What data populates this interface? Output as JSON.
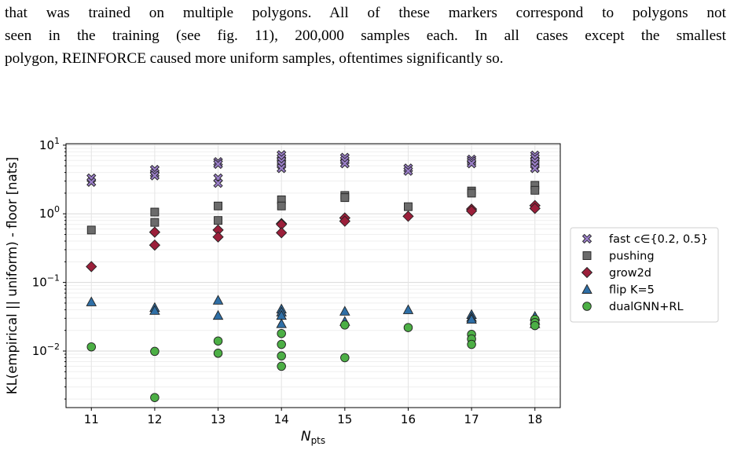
{
  "paragraph": {
    "lines": [
      "that was trained on multiple polygons. All of these markers correspond to polygons not",
      "seen in the training (see fig. 11), 200,000 samples each. In all cases except the smallest",
      "polygon, REINFORCE caused more uniform samples, oftentimes significantly so."
    ]
  },
  "chart_data": {
    "type": "scatter",
    "xlabel": "N",
    "xlabel_subscript": "pts",
    "ylabel": "KL(empirical || uniform) - floor  [nats]",
    "yscale": "log",
    "ylim": [
      0.0015,
      10.5
    ],
    "xlim": [
      10.6,
      18.4
    ],
    "x_ticks": [
      11,
      12,
      13,
      14,
      15,
      16,
      17,
      18
    ],
    "y_ticks": [
      {
        "value": 10,
        "base": "10",
        "exp": "1"
      },
      {
        "value": 1,
        "base": "10",
        "exp": "0"
      },
      {
        "value": 0.1,
        "base": "10",
        "exp": "−1"
      },
      {
        "value": 0.01,
        "base": "10",
        "exp": "−2"
      }
    ],
    "grid": true,
    "legend_position": "right-outside",
    "series": [
      {
        "name": "fast c∈{0.2, 0.5}",
        "marker": "X",
        "color": "#9b7fc9",
        "points": [
          [
            11,
            3.3
          ],
          [
            11,
            2.9
          ],
          [
            12,
            4.4
          ],
          [
            12,
            3.9
          ],
          [
            12,
            3.6
          ],
          [
            13,
            5.7
          ],
          [
            13,
            5.3
          ],
          [
            13,
            3.3
          ],
          [
            13,
            2.8
          ],
          [
            14,
            7.2
          ],
          [
            14,
            6.5
          ],
          [
            14,
            5.8
          ],
          [
            14,
            5.2
          ],
          [
            14,
            4.6
          ],
          [
            15,
            6.6
          ],
          [
            15,
            6.0
          ],
          [
            15,
            5.4
          ],
          [
            16,
            4.6
          ],
          [
            16,
            4.2
          ],
          [
            17,
            6.2
          ],
          [
            17,
            5.8
          ],
          [
            17,
            5.4
          ],
          [
            18,
            7.1
          ],
          [
            18,
            6.5
          ],
          [
            18,
            5.8
          ],
          [
            18,
            5.2
          ],
          [
            18,
            4.6
          ]
        ]
      },
      {
        "name": "pushing",
        "marker": "s",
        "color": "#6b6b6b",
        "points": [
          [
            11,
            0.58
          ],
          [
            12,
            1.06
          ],
          [
            12,
            0.75
          ],
          [
            13,
            1.3
          ],
          [
            13,
            0.8
          ],
          [
            14,
            1.6
          ],
          [
            14,
            1.3
          ],
          [
            15,
            1.85
          ],
          [
            15,
            1.72
          ],
          [
            16,
            1.27
          ],
          [
            17,
            2.15
          ],
          [
            17,
            2.0
          ],
          [
            18,
            2.6
          ],
          [
            18,
            2.2
          ]
        ]
      },
      {
        "name": "grow2d",
        "marker": "D",
        "color": "#9b1f3a",
        "points": [
          [
            11,
            0.17
          ],
          [
            12,
            0.54
          ],
          [
            12,
            0.35
          ],
          [
            13,
            0.58
          ],
          [
            13,
            0.46
          ],
          [
            14,
            0.72
          ],
          [
            14,
            0.7
          ],
          [
            14,
            0.53
          ],
          [
            15,
            0.87
          ],
          [
            15,
            0.78
          ],
          [
            16,
            0.92
          ],
          [
            17,
            1.17
          ],
          [
            17,
            1.1
          ],
          [
            18,
            1.32
          ],
          [
            18,
            1.2
          ]
        ]
      },
      {
        "name": "flip K=5",
        "marker": "^",
        "color": "#2f6fa6",
        "points": [
          [
            11,
            0.052
          ],
          [
            12,
            0.043
          ],
          [
            12,
            0.039
          ],
          [
            13,
            0.055
          ],
          [
            13,
            0.033
          ],
          [
            14,
            0.041
          ],
          [
            14,
            0.037
          ],
          [
            14,
            0.033
          ],
          [
            14,
            0.025
          ],
          [
            15,
            0.038
          ],
          [
            15,
            0.027
          ],
          [
            16,
            0.04
          ],
          [
            17,
            0.034
          ],
          [
            17,
            0.031
          ],
          [
            17,
            0.029
          ],
          [
            18,
            0.032
          ],
          [
            18,
            0.028
          ],
          [
            18,
            0.025
          ]
        ]
      },
      {
        "name": "dualGNN+RL",
        "marker": "o",
        "color": "#4caf45",
        "points": [
          [
            11,
            0.0115
          ],
          [
            12,
            0.0099
          ],
          [
            12,
            0.0021
          ],
          [
            13,
            0.014
          ],
          [
            13,
            0.0093
          ],
          [
            14,
            0.018
          ],
          [
            14,
            0.0125
          ],
          [
            14,
            0.0085
          ],
          [
            14,
            0.006
          ],
          [
            15,
            0.024
          ],
          [
            15,
            0.008
          ],
          [
            16,
            0.022
          ],
          [
            17,
            0.0175
          ],
          [
            17,
            0.015
          ],
          [
            17,
            0.0125
          ],
          [
            18,
            0.029
          ],
          [
            18,
            0.026
          ],
          [
            18,
            0.0235
          ]
        ]
      }
    ]
  }
}
